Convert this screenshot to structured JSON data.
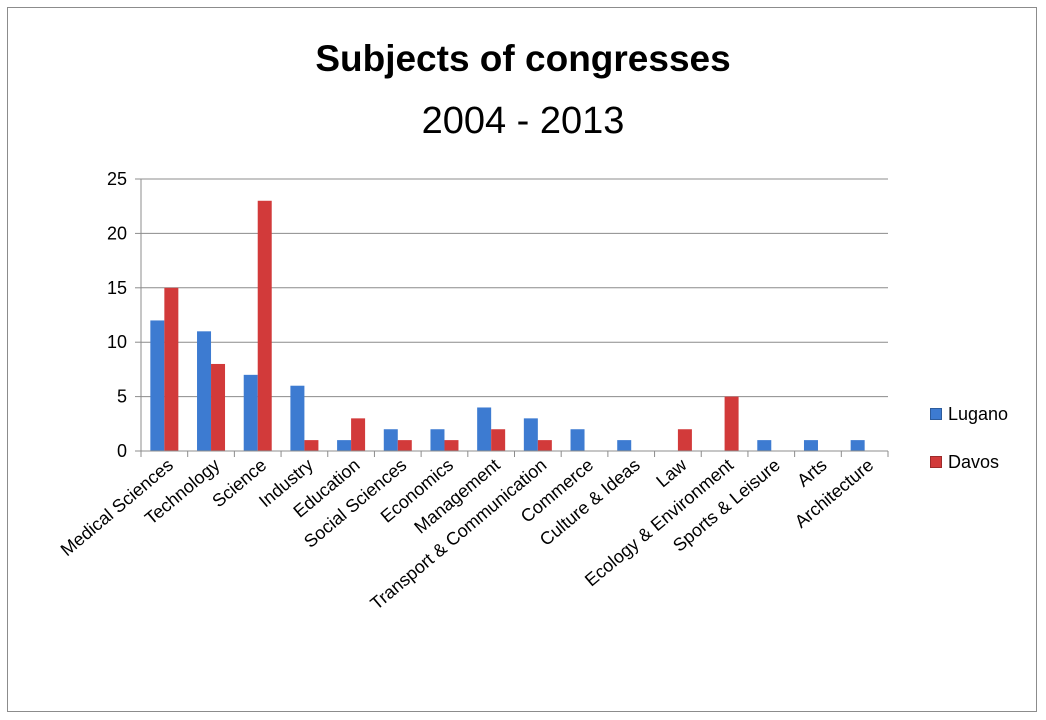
{
  "chart_data": {
    "type": "bar",
    "title": "Subjects of congresses",
    "subtitle": "2004 - 2013",
    "xlabel": "",
    "ylabel": "",
    "ylim": [
      0,
      25
    ],
    "yticks": [
      0,
      5,
      10,
      15,
      20,
      25
    ],
    "grid": true,
    "legend_position": "right",
    "categories": [
      "Medical Sciences",
      "Technology",
      "Science",
      "Industry",
      "Education",
      "Social Sciences",
      "Economics",
      "Management",
      "Transport & Communication",
      "Commerce",
      "Culture & Ideas",
      "Law",
      "Ecology & Environment",
      "Sports & Leisure",
      "Arts",
      "Architecture"
    ],
    "series": [
      {
        "name": "Lugano",
        "color": "#3d7bd1",
        "values": [
          12,
          11,
          7,
          6,
          1,
          2,
          2,
          4,
          3,
          2,
          1,
          0,
          0,
          1,
          1,
          1
        ]
      },
      {
        "name": "Davos",
        "color": "#d23a3a",
        "values": [
          15,
          8,
          23,
          1,
          3,
          1,
          1,
          2,
          1,
          0,
          0,
          2,
          5,
          0,
          0,
          0
        ]
      }
    ]
  }
}
